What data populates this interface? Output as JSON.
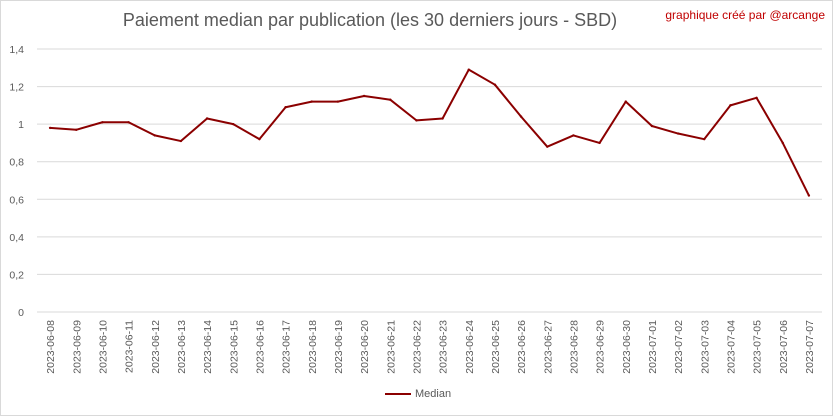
{
  "title": "Paiement median par publication (les 30 derniers jours - SBD)",
  "credit": "graphique créé par @arcange",
  "chart_data": {
    "type": "line",
    "title": "Paiement median par publication (les 30 derniers jours - SBD)",
    "xlabel": "",
    "ylabel": "",
    "ylim": [
      0,
      1.4
    ],
    "yticks": [
      "0",
      "0,2",
      "0,4",
      "0,6",
      "0,8",
      "1",
      "1,2",
      "1,4"
    ],
    "grid": true,
    "legend_position": "bottom",
    "categories": [
      "2023-06-08",
      "2023-06-09",
      "2023-06-10",
      "2023-06-11",
      "2023-06-12",
      "2023-06-13",
      "2023-06-14",
      "2023-06-15",
      "2023-06-16",
      "2023-06-17",
      "2023-06-18",
      "2023-06-19",
      "2023-06-20",
      "2023-06-21",
      "2023-06-22",
      "2023-06-23",
      "2023-06-24",
      "2023-06-25",
      "2023-06-26",
      "2023-06-27",
      "2023-06-28",
      "2023-06-29",
      "2023-06-30",
      "2023-07-01",
      "2023-07-02",
      "2023-07-03",
      "2023-07-04",
      "2023-07-05",
      "2023-07-06",
      "2023-07-07"
    ],
    "series": [
      {
        "name": "Median",
        "color": "#8b0000",
        "values": [
          0.98,
          0.97,
          1.01,
          1.01,
          0.94,
          0.91,
          1.03,
          1.0,
          0.92,
          1.09,
          1.12,
          1.12,
          1.15,
          1.13,
          1.02,
          1.03,
          1.29,
          1.21,
          1.04,
          0.88,
          0.94,
          0.9,
          1.12,
          0.99,
          0.95,
          0.92,
          1.1,
          1.14,
          0.9,
          0.62
        ]
      }
    ]
  }
}
